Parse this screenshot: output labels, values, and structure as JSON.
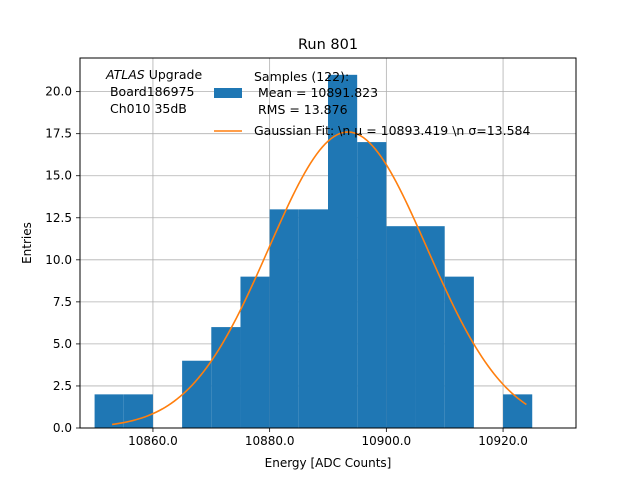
{
  "chart_data": {
    "type": "bar",
    "title": "Run 801",
    "xlabel": "Energy [ADC Counts]",
    "ylabel": "Entries",
    "xlim": [
      10847.5,
      10932.5
    ],
    "ylim": [
      0,
      22
    ],
    "grid": true,
    "bin_edges": [
      10850,
      10855,
      10860,
      10865,
      10870,
      10875,
      10880,
      10885,
      10890,
      10895,
      10900,
      10905,
      10910,
      10915,
      10920,
      10925
    ],
    "values": [
      2,
      2,
      0,
      4,
      6,
      9,
      13,
      13,
      21,
      17,
      12,
      12,
      9,
      0,
      2
    ],
    "x_ticks": [
      10860.0,
      10880.0,
      10900.0,
      10920.0
    ],
    "x_tick_labels": [
      "10860.0",
      "10880.0",
      "10900.0",
      "10920.0"
    ],
    "y_ticks": [
      0,
      2.5,
      5,
      7.5,
      10,
      12.5,
      15,
      17.5,
      20
    ],
    "y_tick_labels": [
      "0.0",
      "2.5",
      "5.0",
      "7.5",
      "10.0",
      "12.5",
      "15.0",
      "17.5",
      "20.0"
    ],
    "fit": {
      "type": "gaussian",
      "mu": 10893.419,
      "sigma": 13.584,
      "amplitude": 17.6,
      "x_range": [
        10853,
        10924
      ]
    },
    "annotation": {
      "line1_italic": "ATLAS",
      "line1_rest": " Upgrade",
      "line2": " Board186975",
      "line3": " Ch010 35dB"
    },
    "legend": {
      "placement": "top-center",
      "entries": [
        {
          "kind": "patch",
          "lines": [
            "Samples (122):",
            " Mean = 10891.823",
            " RMS = 13.876"
          ]
        },
        {
          "kind": "line",
          "lines": [
            "Gaussian Fit: \\n μ = 10893.419 \\n σ=13.584"
          ]
        }
      ]
    },
    "colors": {
      "bars": "#1f77b4",
      "fit": "#ff7f0e",
      "grid": "#b0b0b0"
    }
  }
}
